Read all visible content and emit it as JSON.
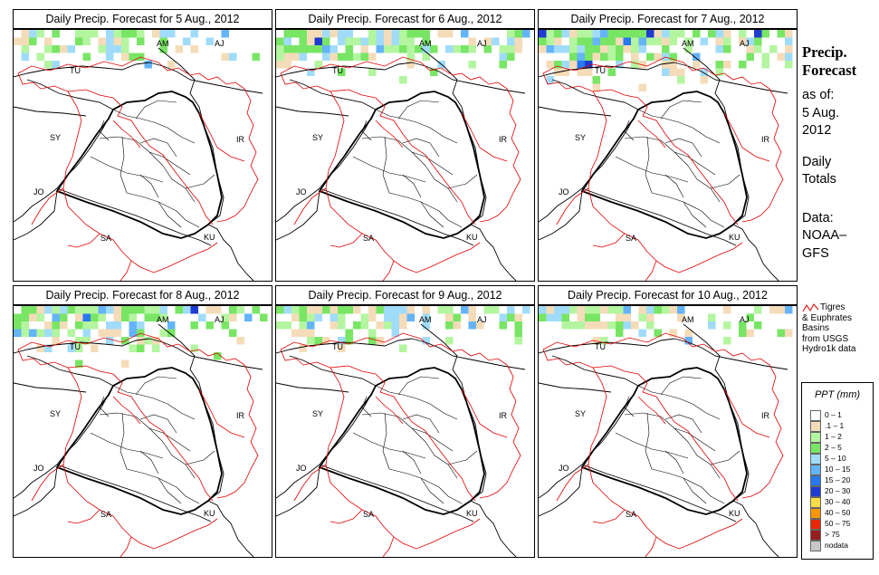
{
  "panels": [
    {
      "title": "Daily Precip. Forecast for  5 Aug., 2012",
      "seed": 11,
      "extent": 0.55,
      "intensity": 0.25
    },
    {
      "title": "Daily Precip. Forecast for  6 Aug., 2012",
      "seed": 23,
      "extent": 0.8,
      "intensity": 0.45
    },
    {
      "title": "Daily Precip. Forecast for  7 Aug., 2012",
      "seed": 37,
      "extent": 1.0,
      "intensity": 0.5
    },
    {
      "title": "Daily Precip. Forecast for  8 Aug., 2012",
      "seed": 41,
      "extent": 0.9,
      "intensity": 0.6
    },
    {
      "title": "Daily Precip. Forecast for  9 Aug., 2012",
      "seed": 53,
      "extent": 0.75,
      "intensity": 0.3
    },
    {
      "title": "Daily Precip. Forecast for  10 Aug., 2012",
      "seed": 67,
      "extent": 0.55,
      "intensity": 0.2
    }
  ],
  "map_labels": [
    "AM",
    "AJ",
    "TU",
    "SY",
    "IR",
    "JO",
    "SA",
    "KU"
  ],
  "sidebar": {
    "title_line1": "Precip.",
    "title_line2": "Forecast",
    "asof_line1": "as of:",
    "asof_line2": "5 Aug.",
    "asof_line3": "2012",
    "daily_line1": "Daily",
    "daily_line2": "Totals",
    "data_line1": "Data:",
    "data_line2": "NOAA–",
    "data_line3": "GFS"
  },
  "basin_legend": {
    "line1": "Tigres",
    "line2": "& Euphrates",
    "line3": "Basins",
    "line4": "from USGS",
    "line5": "Hydro1k data",
    "color": "#e00000"
  },
  "ppt_legend": {
    "title": "PPT (mm)",
    "items": [
      {
        "label": "0 – 1",
        "color": "#ffffff"
      },
      {
        "label": ".1 – 1",
        "color": "#f5dcb9"
      },
      {
        "label": "1 – 2",
        "color": "#b4f5a0"
      },
      {
        "label": "2 – 5",
        "color": "#78e664"
      },
      {
        "label": "5 – 10",
        "color": "#a0dcfa"
      },
      {
        "label": "10 – 15",
        "color": "#64b4fa"
      },
      {
        "label": "15 – 20",
        "color": "#2878f0"
      },
      {
        "label": "20 – 30",
        "color": "#1e3cd2"
      },
      {
        "label": "30 – 40",
        "color": "#fadc46"
      },
      {
        "label": "40 – 50",
        "color": "#fa9600"
      },
      {
        "label": "50 – 75",
        "color": "#e62800"
      },
      {
        "label": "> 75",
        "color": "#961e1e"
      },
      {
        "label": "nodata",
        "color": "#c8c8c8"
      }
    ]
  }
}
